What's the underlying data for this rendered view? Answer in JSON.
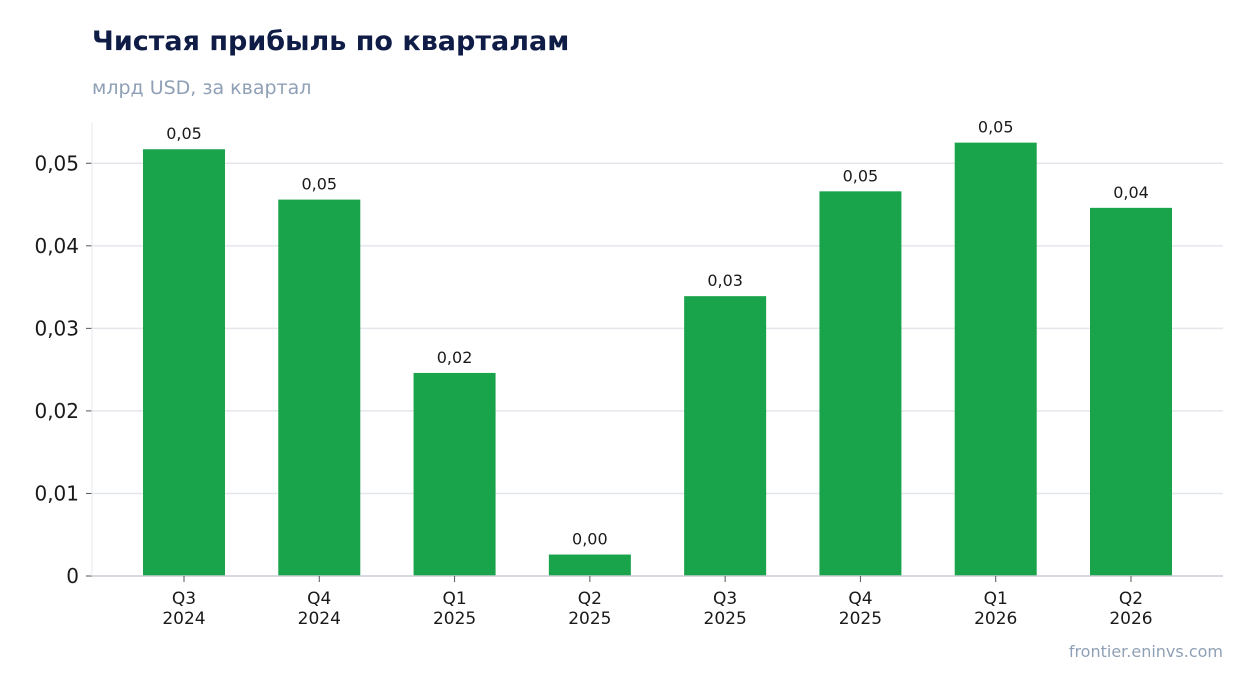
{
  "header": {
    "title": "Чистая прибыль по кварталам",
    "subtitle": "млрд USD, за квартал"
  },
  "footer": {
    "source": "frontier.eninvs.com"
  },
  "colors": {
    "bar": "#19a34a",
    "grid": "#e3e7ec",
    "axis": "#c9ced6"
  },
  "chart_data": {
    "type": "bar",
    "title": "Чистая прибыль по кварталам",
    "subtitle": "млрд USD, за квартал",
    "categories": [
      "Q3 2024",
      "Q4 2024",
      "Q1 2025",
      "Q2 2025",
      "Q3 2025",
      "Q4 2025",
      "Q1 2026",
      "Q2 2026"
    ],
    "category_lines": [
      [
        "Q3",
        "2024"
      ],
      [
        "Q4",
        "2024"
      ],
      [
        "Q1",
        "2025"
      ],
      [
        "Q2",
        "2025"
      ],
      [
        "Q3",
        "2025"
      ],
      [
        "Q4",
        "2025"
      ],
      [
        "Q1",
        "2026"
      ],
      [
        "Q2",
        "2026"
      ]
    ],
    "values": [
      0.0517,
      0.0456,
      0.0246,
      0.0026,
      0.0339,
      0.0466,
      0.0525,
      0.0446
    ],
    "data_labels": [
      "0,05",
      "0,05",
      "0,02",
      "0,00",
      "0,03",
      "0,05",
      "0,05",
      "0,04"
    ],
    "yticks": [
      0,
      0.01,
      0.02,
      0.03,
      0.04,
      0.05
    ],
    "ytick_labels": [
      "0",
      "0,01",
      "0,02",
      "0,03",
      "0,04",
      "0,05"
    ],
    "ylim": [
      0,
      0.055
    ],
    "grid": true,
    "legend": "none"
  }
}
